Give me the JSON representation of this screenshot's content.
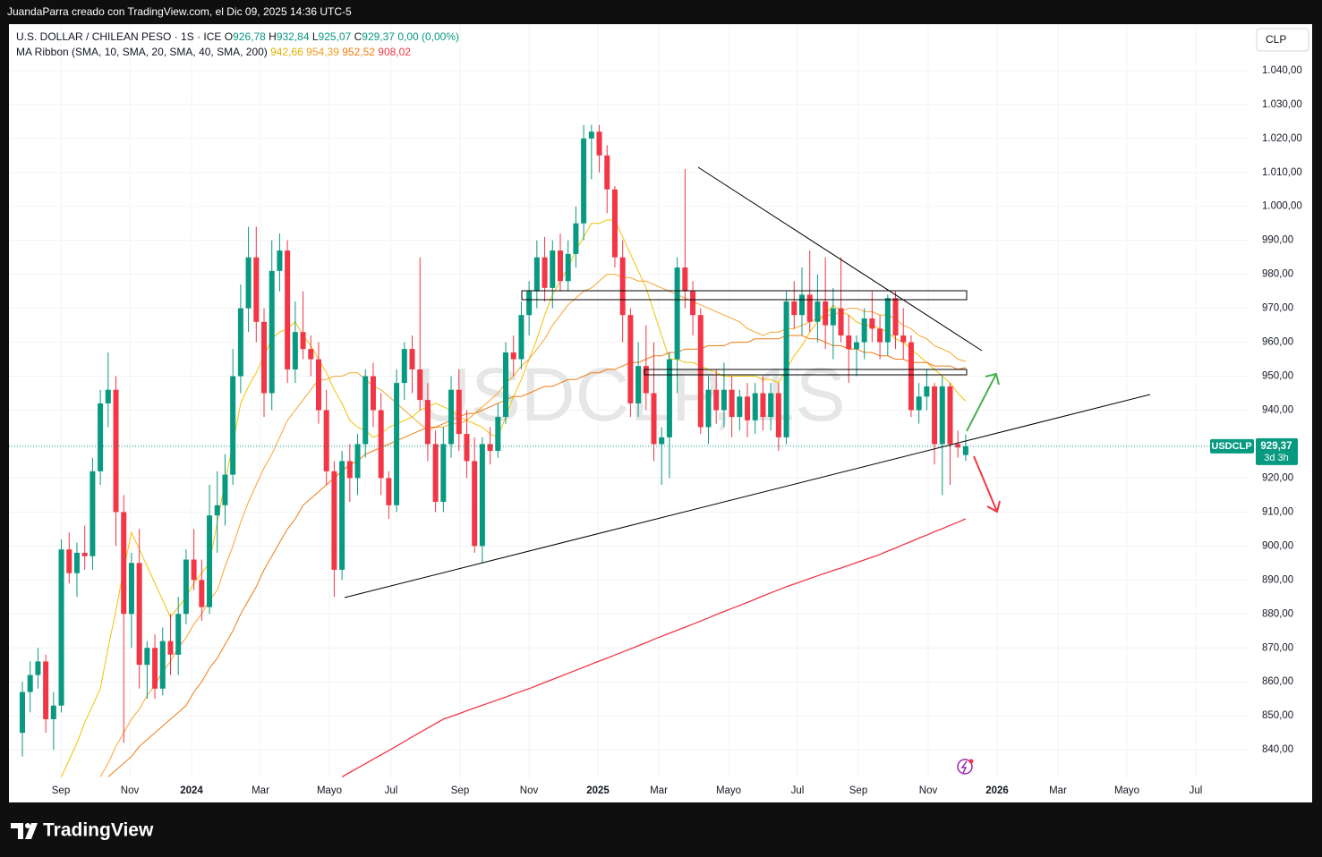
{
  "header": {
    "author_line": "JuandaParra creado con TradingView.com, el Dic 09, 2025 14:36 UTC-5"
  },
  "chart_data": {
    "type": "candlestick",
    "symbol": "U.S. DOLLAR / CHILEAN PESO · 1S · ICE",
    "ohlc_legend": [
      {
        "letter": "O",
        "text": "926,78"
      },
      {
        "letter": "H",
        "text": "932,84"
      },
      {
        "letter": "L",
        "text": "925,07"
      },
      {
        "letter": "C",
        "text": "929,37"
      }
    ],
    "change": "0,00 (0,00%)",
    "indicator": "MA Ribbon (SMA, 10, SMA, 20, SMA, 40, SMA, 200)",
    "watermark": "USDCLP, 1S",
    "currency": "CLP",
    "up_color": "#089981",
    "down_color": "#f23645",
    "candles": [
      [
        845,
        860,
        838,
        857
      ],
      [
        857,
        866,
        851,
        862
      ],
      [
        862,
        870,
        858,
        866
      ],
      [
        866,
        868,
        845,
        849
      ],
      [
        849,
        857,
        840,
        853
      ],
      [
        853,
        902,
        851,
        899
      ],
      [
        899,
        904,
        889,
        892
      ],
      [
        892,
        901,
        885,
        898
      ],
      [
        898,
        906,
        893,
        897
      ],
      [
        897,
        926,
        893,
        922
      ],
      [
        922,
        946,
        918,
        942
      ],
      [
        942,
        957,
        935,
        946
      ],
      [
        946,
        950,
        900,
        910
      ],
      [
        910,
        915,
        842,
        880
      ],
      [
        880,
        898,
        870,
        895
      ],
      [
        895,
        905,
        858,
        865
      ],
      [
        865,
        872,
        855,
        870
      ],
      [
        870,
        874,
        855,
        858
      ],
      [
        858,
        876,
        856,
        872
      ],
      [
        872,
        880,
        862,
        868
      ],
      [
        868,
        885,
        862,
        880
      ],
      [
        880,
        899,
        877,
        896
      ],
      [
        896,
        905,
        887,
        890
      ],
      [
        890,
        896,
        878,
        882
      ],
      [
        882,
        918,
        880,
        909
      ],
      [
        909,
        922,
        898,
        912
      ],
      [
        912,
        927,
        906,
        921
      ],
      [
        921,
        958,
        918,
        950
      ],
      [
        950,
        977,
        945,
        970
      ],
      [
        970,
        994,
        963,
        985
      ],
      [
        985,
        994,
        960,
        966
      ],
      [
        966,
        970,
        938,
        945
      ],
      [
        945,
        990,
        940,
        981
      ],
      [
        981,
        992,
        975,
        987
      ],
      [
        987,
        990,
        948,
        952
      ],
      [
        952,
        972,
        948,
        963
      ],
      [
        963,
        975,
        955,
        958
      ],
      [
        958,
        962,
        950,
        955
      ],
      [
        955,
        960,
        936,
        940
      ],
      [
        940,
        946,
        918,
        922
      ],
      [
        922,
        925,
        885,
        893
      ],
      [
        893,
        928,
        890,
        925
      ],
      [
        925,
        930,
        913,
        920
      ],
      [
        920,
        933,
        915,
        930
      ],
      [
        930,
        952,
        926,
        950
      ],
      [
        950,
        954,
        935,
        940
      ],
      [
        940,
        945,
        915,
        920
      ],
      [
        920,
        922,
        908,
        912
      ],
      [
        912,
        952,
        910,
        948
      ],
      [
        948,
        960,
        943,
        958
      ],
      [
        958,
        962,
        945,
        952
      ],
      [
        952,
        985,
        940,
        943
      ],
      [
        943,
        948,
        925,
        930
      ],
      [
        930,
        934,
        910,
        913
      ],
      [
        913,
        935,
        910,
        930
      ],
      [
        930,
        950,
        926,
        946
      ],
      [
        946,
        952,
        928,
        933
      ],
      [
        933,
        940,
        920,
        925
      ],
      [
        925,
        932,
        898,
        900
      ],
      [
        900,
        932,
        895,
        930
      ],
      [
        930,
        935,
        924,
        928
      ],
      [
        928,
        942,
        926,
        938
      ],
      [
        938,
        960,
        936,
        957
      ],
      [
        957,
        962,
        950,
        955
      ],
      [
        955,
        972,
        952,
        968
      ],
      [
        968,
        978,
        962,
        975
      ],
      [
        975,
        990,
        970,
        985
      ],
      [
        985,
        991,
        972,
        976
      ],
      [
        976,
        990,
        970,
        987
      ],
      [
        987,
        992,
        975,
        978
      ],
      [
        978,
        990,
        975,
        986
      ],
      [
        986,
        1000,
        982,
        995
      ],
      [
        995,
        1024,
        990,
        1020
      ],
      [
        1020,
        1024,
        1008,
        1022
      ],
      [
        1022,
        1024,
        1010,
        1015
      ],
      [
        1015,
        1018,
        998,
        1005
      ],
      [
        1005,
        1006,
        982,
        985
      ],
      [
        985,
        990,
        960,
        968
      ],
      [
        968,
        970,
        938,
        942
      ],
      [
        942,
        960,
        938,
        953
      ],
      [
        953,
        965,
        940,
        945
      ],
      [
        945,
        960,
        925,
        930
      ],
      [
        930,
        935,
        918,
        932
      ],
      [
        932,
        957,
        920,
        955
      ],
      [
        955,
        985,
        945,
        982
      ],
      [
        982,
        1011,
        970,
        975
      ],
      [
        975,
        978,
        962,
        968
      ],
      [
        968,
        970,
        933,
        935
      ],
      [
        935,
        950,
        930,
        946
      ],
      [
        946,
        952,
        936,
        940
      ],
      [
        940,
        954,
        935,
        946
      ],
      [
        946,
        950,
        932,
        938
      ],
      [
        938,
        946,
        934,
        944
      ],
      [
        944,
        948,
        932,
        937
      ],
      [
        937,
        948,
        933,
        945
      ],
      [
        945,
        950,
        934,
        938
      ],
      [
        938,
        948,
        934,
        945
      ],
      [
        945,
        948,
        928,
        932
      ],
      [
        932,
        975,
        930,
        972
      ],
      [
        972,
        978,
        964,
        968
      ],
      [
        968,
        982,
        962,
        974
      ],
      [
        974,
        987,
        963,
        966
      ],
      [
        966,
        980,
        960,
        972
      ],
      [
        972,
        985,
        958,
        965
      ],
      [
        965,
        976,
        955,
        970
      ],
      [
        970,
        985,
        960,
        962
      ],
      [
        962,
        968,
        948,
        958
      ],
      [
        958,
        962,
        950,
        960
      ],
      [
        960,
        970,
        955,
        967
      ],
      [
        967,
        975,
        960,
        964
      ],
      [
        964,
        968,
        955,
        960
      ],
      [
        960,
        974,
        956,
        973
      ],
      [
        973,
        975,
        958,
        962
      ],
      [
        962,
        970,
        955,
        960
      ],
      [
        960,
        962,
        938,
        940
      ],
      [
        940,
        948,
        936,
        944
      ],
      [
        944,
        952,
        940,
        947
      ],
      [
        947,
        948,
        924,
        930
      ],
      [
        930,
        950,
        915,
        947
      ],
      [
        947,
        948,
        918,
        930
      ],
      [
        930,
        934,
        926,
        929
      ],
      [
        926.78,
        932.84,
        925.07,
        929.37
      ]
    ],
    "series": [
      {
        "color": "#f2c200",
        "last_label": "942,66",
        "values": [
          null,
          null,
          null,
          null,
          null,
          832,
          837,
          842,
          848,
          853,
          858,
          870,
          881,
          893,
          904,
          899,
          894,
          889,
          884,
          879,
          882,
          885,
          889,
          892,
          895,
          907,
          919,
          930,
          942,
          947,
          951,
          956,
          961,
          963,
          964,
          966,
          962,
          959,
          955,
          951,
          946,
          942,
          937,
          935,
          934,
          932,
          933,
          935,
          936,
          937,
          938,
          940,
          941,
          942,
          941,
          940,
          938,
          937,
          936,
          935,
          933,
          932,
          938,
          944,
          949,
          955,
          961,
          968,
          974,
          978,
          982,
          987,
          991,
          995,
          995,
          996,
          996,
          991,
          986,
          981,
          976,
          969,
          962,
          955,
          955,
          954,
          954,
          953,
          952,
          951,
          950,
          950,
          950,
          950,
          950,
          949,
          949,
          948,
          952,
          956,
          959,
          963,
          966,
          968,
          971,
          969,
          968,
          966,
          965,
          965,
          964,
          963,
          961,
          960,
          958,
          956,
          954,
          952,
          950,
          948,
          945,
          942.66
        ]
      },
      {
        "color": "#f7a531",
        "last_label": "954,39",
        "values": [
          null,
          null,
          null,
          null,
          null,
          null,
          null,
          null,
          null,
          null,
          832,
          836,
          841,
          845,
          849,
          852,
          856,
          859,
          863,
          866,
          870,
          873,
          877,
          880,
          884,
          887,
          894,
          900,
          907,
          913,
          918,
          923,
          927,
          932,
          937,
          940,
          943,
          946,
          949,
          949,
          950,
          950,
          951,
          951,
          949,
          947,
          946,
          944,
          942,
          940,
          938,
          936,
          934,
          935,
          935,
          936,
          936,
          937,
          939,
          941,
          943,
          945,
          948,
          950,
          953,
          955,
          958,
          961,
          965,
          968,
          971,
          973,
          975,
          976,
          978,
          980,
          980,
          979,
          979,
          978,
          978,
          977,
          976,
          975,
          974,
          973,
          972,
          971,
          970,
          969,
          968,
          967,
          966,
          964,
          963,
          962,
          963,
          963,
          964,
          964,
          965,
          966,
          967,
          968,
          968,
          969,
          970,
          970,
          969,
          969,
          968,
          968,
          967,
          965,
          964,
          962,
          961,
          959,
          958,
          957,
          955,
          954.39
        ]
      },
      {
        "color": "#ef7a12",
        "last_label": "952,52",
        "values": [
          null,
          null,
          null,
          null,
          null,
          null,
          null,
          null,
          null,
          null,
          null,
          832,
          834,
          836,
          838,
          841,
          843,
          845,
          847,
          849,
          851,
          853,
          857,
          860,
          864,
          867,
          871,
          875,
          880,
          884,
          888,
          893,
          897,
          901,
          905,
          908,
          912,
          914,
          916,
          918,
          920,
          922,
          924,
          925,
          927,
          928,
          929,
          930,
          931,
          932,
          933,
          934,
          935,
          935,
          936,
          937,
          938,
          939,
          939,
          940,
          941,
          942,
          943,
          944,
          944,
          945,
          946,
          947,
          947,
          948,
          949,
          949,
          950,
          951,
          951,
          952,
          952,
          953,
          954,
          954,
          955,
          956,
          956,
          957,
          957,
          958,
          958,
          958,
          959,
          959,
          959,
          960,
          960,
          960,
          961,
          961,
          961,
          961,
          962,
          962,
          962,
          961,
          961,
          960,
          959,
          959,
          958,
          958,
          957,
          957,
          956,
          956,
          955,
          955,
          954,
          954,
          954,
          953,
          953,
          953,
          952,
          952.52
        ]
      },
      {
        "color": "#f23645",
        "last_label": "908,02",
        "values": [
          null,
          null,
          null,
          null,
          null,
          null,
          null,
          null,
          null,
          null,
          null,
          null,
          null,
          null,
          null,
          null,
          null,
          null,
          null,
          null,
          null,
          null,
          null,
          null,
          null,
          null,
          null,
          null,
          null,
          null,
          null,
          null,
          null,
          null,
          null,
          null,
          null,
          null,
          null,
          null,
          null,
          832,
          833.3,
          834.6,
          835.9,
          837.2,
          838.5,
          839.8,
          841.1,
          842.4,
          843.8,
          845.1,
          846.4,
          847.7,
          849,
          849.8,
          850.6,
          851.5,
          852.3,
          853.1,
          853.9,
          854.7,
          855.5,
          856.4,
          857.2,
          858,
          858.9,
          859.8,
          860.7,
          861.6,
          862.5,
          863.4,
          864.3,
          865.2,
          866.1,
          867,
          867.9,
          868.8,
          869.7,
          870.6,
          871.5,
          872.5,
          873.4,
          874.3,
          875.2,
          876.1,
          877,
          877.9,
          878.8,
          879.8,
          880.7,
          881.6,
          882.5,
          883.4,
          884.3,
          885.3,
          886.2,
          887.1,
          888,
          888.8,
          889.6,
          890.4,
          891.2,
          892,
          892.8,
          893.5,
          894.3,
          895.1,
          895.9,
          896.7,
          897.5,
          898.5,
          899.4,
          900.4,
          901.3,
          902.3,
          903.2,
          904.2,
          905.1,
          906.1,
          907,
          908.02
        ]
      }
    ],
    "ylim": [
      831.6,
      1053.4
    ],
    "yticks": [
      {
        "value": 840,
        "label": "840,00"
      },
      {
        "value": 850,
        "label": "850,00"
      },
      {
        "value": 860,
        "label": "860,00"
      },
      {
        "value": 870,
        "label": "870,00"
      },
      {
        "value": 880,
        "label": "880,00"
      },
      {
        "value": 890,
        "label": "890,00"
      },
      {
        "value": 900,
        "label": "900,00"
      },
      {
        "value": 910,
        "label": "910,00"
      },
      {
        "value": 920,
        "label": "920,00"
      },
      {
        "value": 930,
        "label": "930,00"
      },
      {
        "value": 940,
        "label": "940,00"
      },
      {
        "value": 950,
        "label": "950,00"
      },
      {
        "value": 960,
        "label": "960,00"
      },
      {
        "value": 970,
        "label": "970,00"
      },
      {
        "value": 980,
        "label": "980,00"
      },
      {
        "value": 990,
        "label": "990,00"
      },
      {
        "value": 1000,
        "label": "1.000,00"
      },
      {
        "value": 1010,
        "label": "1.010,00"
      },
      {
        "value": 1020,
        "label": "1.020,00"
      },
      {
        "value": 1030,
        "label": "1.030,00"
      },
      {
        "value": 1040,
        "label": "1.040,00"
      }
    ],
    "x_axis_labels": [
      "Sep",
      "Nov",
      "2024",
      "Mar",
      "Mayo",
      "Jul",
      "Sep",
      "Nov",
      "2025",
      "Mar",
      "Mayo",
      "Jul",
      "Sep",
      "Nov",
      "2026",
      "Mar",
      "Mayo",
      "Jul"
    ],
    "last_price": {
      "symbol": "USDCLP",
      "value": 929.37,
      "price": "929,37",
      "countdown": "3d 3h"
    }
  },
  "footer": {
    "brand": "TradingView"
  }
}
